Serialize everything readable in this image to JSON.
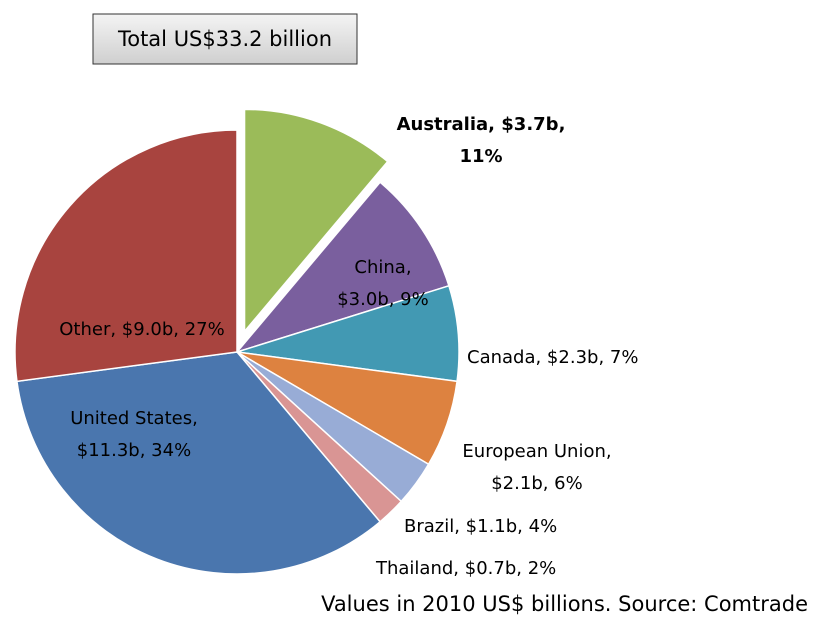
{
  "chart_data": {
    "type": "pie",
    "title": "Total US$33.2 billion",
    "source": "Values in 2010 US$ billions. Source: Comtrade",
    "categories": [
      "Australia",
      "China",
      "Canada",
      "European Union",
      "Brazil",
      "Thailand",
      "United States",
      "Other"
    ],
    "values": [
      3.7,
      3.0,
      2.3,
      2.1,
      1.1,
      0.7,
      11.3,
      9.0
    ],
    "value_labels": [
      [
        "Australia, $3.7b,",
        "11%"
      ],
      [
        "China,",
        "$3.0b, 9%"
      ],
      [
        "Canada, $2.3b, 7%"
      ],
      [
        "European Union,",
        "$2.1b, 6%"
      ],
      [
        "Brazil, $1.1b, 4%"
      ],
      [
        "Thailand, $0.7b, 2%"
      ],
      [
        "United States,",
        "$11.3b, 34%"
      ],
      [
        "Other, $9.0b, 27%"
      ]
    ],
    "colors": [
      "#9bbb59",
      "#7a5f9e",
      "#4299b3",
      "#dd8240",
      "#98acd6",
      "#d99594",
      "#4a76ae",
      "#a8443f"
    ],
    "exploded": [
      true,
      false,
      false,
      false,
      false,
      false,
      false,
      false
    ]
  }
}
